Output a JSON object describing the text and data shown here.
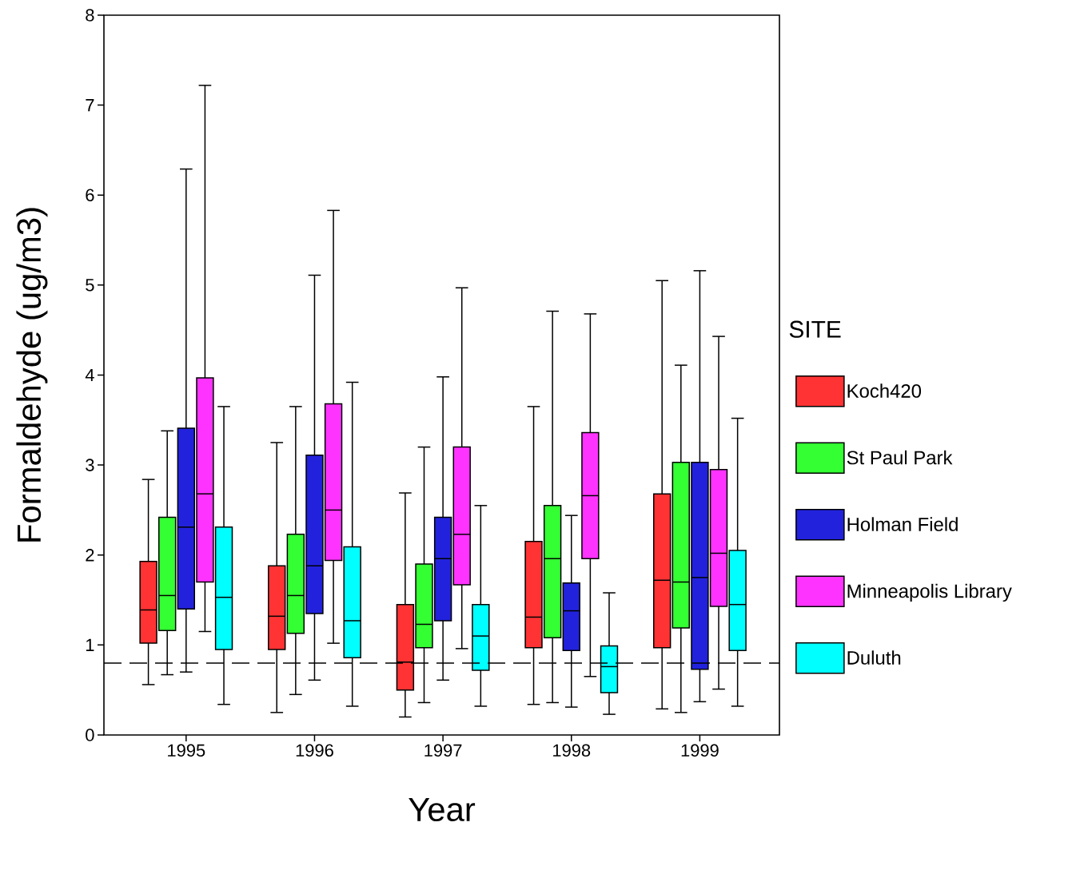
{
  "chart_data": {
    "type": "box",
    "xlabel": "Year",
    "ylabel": "Formaldehyde (ug/m3)",
    "legend_title": "SITE",
    "legend": "right",
    "categories": [
      "1995",
      "1996",
      "1997",
      "1998",
      "1999"
    ],
    "ylim": [
      0,
      8
    ],
    "yticks": [
      0,
      1,
      2,
      3,
      4,
      5,
      6,
      7,
      8
    ],
    "grid": false,
    "ref_lines": [
      {
        "axis": "y",
        "value": 0.8,
        "line_style": "dashed"
      }
    ],
    "series": [
      {
        "name": "Koch420",
        "color": "#ff3333",
        "boxes": [
          {
            "low": 0.56,
            "q1": 1.02,
            "median": 1.39,
            "q3": 1.93,
            "high": 2.84
          },
          {
            "low": 0.25,
            "q1": 0.95,
            "median": 1.32,
            "q3": 1.88,
            "high": 3.25
          },
          {
            "low": 0.2,
            "q1": 0.5,
            "median": 0.81,
            "q3": 1.45,
            "high": 2.69
          },
          {
            "low": 0.34,
            "q1": 0.97,
            "median": 1.31,
            "q3": 2.15,
            "high": 3.65
          },
          {
            "low": 0.29,
            "q1": 0.97,
            "median": 1.72,
            "q3": 2.68,
            "high": 5.05
          }
        ]
      },
      {
        "name": "St Paul Park",
        "color": "#33ff33",
        "boxes": [
          {
            "low": 0.67,
            "q1": 1.16,
            "median": 1.55,
            "q3": 2.42,
            "high": 3.38
          },
          {
            "low": 0.45,
            "q1": 1.13,
            "median": 1.55,
            "q3": 2.23,
            "high": 3.65
          },
          {
            "low": 0.36,
            "q1": 0.97,
            "median": 1.23,
            "q3": 1.9,
            "high": 3.2
          },
          {
            "low": 0.36,
            "q1": 1.08,
            "median": 1.96,
            "q3": 2.55,
            "high": 4.71
          },
          {
            "low": 0.25,
            "q1": 1.19,
            "median": 1.7,
            "q3": 3.03,
            "high": 4.11
          }
        ]
      },
      {
        "name": "Holman Field",
        "color": "#2222dd",
        "boxes": [
          {
            "low": 0.7,
            "q1": 1.4,
            "median": 2.31,
            "q3": 3.41,
            "high": 6.29
          },
          {
            "low": 0.61,
            "q1": 1.35,
            "median": 1.88,
            "q3": 3.11,
            "high": 5.11
          },
          {
            "low": 0.61,
            "q1": 1.27,
            "median": 1.96,
            "q3": 2.42,
            "high": 3.98
          },
          {
            "low": 0.31,
            "q1": 0.94,
            "median": 1.38,
            "q3": 1.69,
            "high": 2.44
          },
          {
            "low": 0.37,
            "q1": 0.73,
            "median": 1.75,
            "q3": 3.03,
            "high": 5.16
          }
        ]
      },
      {
        "name": "Minneapolis Library",
        "color": "#ff33ff",
        "boxes": [
          {
            "low": 1.15,
            "q1": 1.7,
            "median": 2.68,
            "q3": 3.97,
            "high": 7.22
          },
          {
            "low": 1.02,
            "q1": 1.94,
            "median": 2.5,
            "q3": 3.68,
            "high": 5.83
          },
          {
            "low": 0.96,
            "q1": 1.67,
            "median": 2.23,
            "q3": 3.2,
            "high": 4.97
          },
          {
            "low": 0.65,
            "q1": 1.96,
            "median": 2.66,
            "q3": 3.36,
            "high": 4.68
          },
          {
            "low": 0.51,
            "q1": 1.43,
            "median": 2.02,
            "q3": 2.95,
            "high": 4.43
          }
        ]
      },
      {
        "name": "Duluth",
        "color": "#00ffff",
        "boxes": [
          {
            "low": 0.34,
            "q1": 0.95,
            "median": 1.53,
            "q3": 2.31,
            "high": 3.65
          },
          {
            "low": 0.32,
            "q1": 0.86,
            "median": 1.27,
            "q3": 2.09,
            "high": 3.92
          },
          {
            "low": 0.32,
            "q1": 0.72,
            "median": 1.1,
            "q3": 1.45,
            "high": 2.55
          },
          {
            "low": 0.23,
            "q1": 0.47,
            "median": 0.76,
            "q3": 0.99,
            "high": 1.58
          },
          {
            "low": 0.32,
            "q1": 0.94,
            "median": 1.45,
            "q3": 2.05,
            "high": 3.52
          }
        ]
      }
    ]
  }
}
